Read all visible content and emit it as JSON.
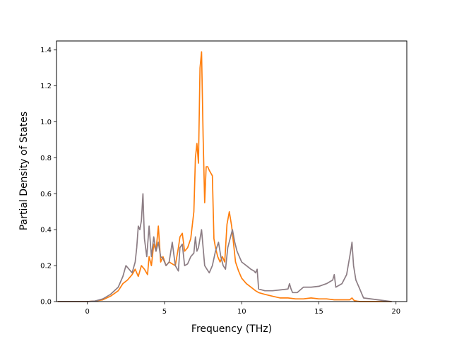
{
  "chart_data": {
    "type": "line",
    "title": "",
    "xlabel": "Frequency (THz)",
    "ylabel": "Partial Density of States",
    "xlim": [
      -2.0,
      20.7
    ],
    "ylim": [
      0.0,
      1.45
    ],
    "xticks": [
      0,
      5,
      10,
      15,
      20
    ],
    "yticks": [
      0.0,
      0.2,
      0.4,
      0.6,
      0.8,
      1.0,
      1.2,
      1.4
    ],
    "xtick_labels": [
      "0",
      "5",
      "10",
      "15",
      "20"
    ],
    "ytick_labels": [
      "0.0",
      "0.2",
      "0.4",
      "0.6",
      "0.8",
      "1.0",
      "1.2",
      "1.4"
    ],
    "grid": false,
    "legend": "none",
    "series": [
      {
        "color": "#ff7f0e",
        "x": [
          -1.9,
          0.0,
          0.5,
          1.0,
          1.5,
          2.0,
          2.3,
          2.6,
          2.9,
          3.1,
          3.3,
          3.5,
          3.7,
          3.9,
          4.0,
          4.15,
          4.3,
          4.45,
          4.6,
          4.75,
          4.9,
          5.1,
          5.3,
          5.5,
          5.7,
          5.9,
          6.0,
          6.15,
          6.3,
          6.5,
          6.7,
          6.9,
          7.0,
          7.1,
          7.2,
          7.3,
          7.4,
          7.5,
          7.6,
          7.7,
          7.8,
          7.9,
          8.1,
          8.2,
          8.3,
          8.45,
          8.6,
          8.75,
          8.9,
          9.05,
          9.2,
          9.35,
          9.5,
          9.6,
          9.8,
          10.0,
          10.3,
          10.6,
          10.9,
          11.1,
          11.5,
          12.0,
          12.5,
          13.0,
          13.5,
          14.0,
          14.5,
          15.0,
          15.5,
          16.0,
          16.5,
          17.0,
          17.15,
          17.3,
          17.5,
          17.7,
          17.9,
          19.7
        ],
        "values": [
          0.0,
          0.0,
          0.003,
          0.01,
          0.03,
          0.06,
          0.1,
          0.12,
          0.15,
          0.18,
          0.14,
          0.2,
          0.18,
          0.15,
          0.25,
          0.2,
          0.32,
          0.28,
          0.42,
          0.22,
          0.25,
          0.2,
          0.22,
          0.21,
          0.2,
          0.3,
          0.36,
          0.38,
          0.28,
          0.3,
          0.35,
          0.5,
          0.8,
          0.88,
          0.77,
          1.3,
          1.39,
          0.92,
          0.55,
          0.75,
          0.75,
          0.73,
          0.7,
          0.35,
          0.3,
          0.25,
          0.22,
          0.25,
          0.22,
          0.43,
          0.5,
          0.42,
          0.3,
          0.22,
          0.17,
          0.13,
          0.1,
          0.08,
          0.06,
          0.05,
          0.04,
          0.03,
          0.02,
          0.02,
          0.015,
          0.015,
          0.02,
          0.015,
          0.015,
          0.01,
          0.01,
          0.01,
          0.02,
          0.005,
          0.002,
          0.0,
          0.0,
          0.0
        ]
      },
      {
        "color": "#8c7d84",
        "x": [
          -1.9,
          0.0,
          0.5,
          1.0,
          1.5,
          2.0,
          2.3,
          2.5,
          2.7,
          2.9,
          3.1,
          3.2,
          3.3,
          3.4,
          3.5,
          3.6,
          3.7,
          3.85,
          4.0,
          4.15,
          4.3,
          4.45,
          4.6,
          4.75,
          4.9,
          5.1,
          5.3,
          5.5,
          5.7,
          5.9,
          6.0,
          6.15,
          6.3,
          6.5,
          6.7,
          6.9,
          7.0,
          7.1,
          7.2,
          7.3,
          7.4,
          7.5,
          7.6,
          7.75,
          7.9,
          8.1,
          8.3,
          8.5,
          8.65,
          8.8,
          8.95,
          9.1,
          9.25,
          9.4,
          9.55,
          9.7,
          9.85,
          10.0,
          10.3,
          10.6,
          10.8,
          10.9,
          11.0,
          11.1,
          11.5,
          12.0,
          12.5,
          13.0,
          13.1,
          13.2,
          13.3,
          13.6,
          14.0,
          14.5,
          15.0,
          15.5,
          15.9,
          16.0,
          16.1,
          16.5,
          16.8,
          17.0,
          17.1,
          17.15,
          17.25,
          17.4,
          17.6,
          17.8,
          17.9,
          19.7
        ],
        "values": [
          0.0,
          0.0,
          0.003,
          0.015,
          0.04,
          0.08,
          0.14,
          0.2,
          0.18,
          0.16,
          0.22,
          0.3,
          0.42,
          0.4,
          0.45,
          0.6,
          0.35,
          0.25,
          0.42,
          0.25,
          0.36,
          0.28,
          0.33,
          0.25,
          0.24,
          0.2,
          0.22,
          0.33,
          0.2,
          0.17,
          0.3,
          0.32,
          0.2,
          0.21,
          0.25,
          0.27,
          0.36,
          0.28,
          0.3,
          0.35,
          0.4,
          0.3,
          0.2,
          0.18,
          0.16,
          0.2,
          0.28,
          0.33,
          0.25,
          0.2,
          0.18,
          0.3,
          0.35,
          0.4,
          0.33,
          0.28,
          0.25,
          0.22,
          0.2,
          0.18,
          0.17,
          0.16,
          0.18,
          0.07,
          0.06,
          0.06,
          0.065,
          0.07,
          0.1,
          0.07,
          0.05,
          0.05,
          0.08,
          0.08,
          0.085,
          0.1,
          0.12,
          0.15,
          0.08,
          0.1,
          0.15,
          0.25,
          0.3,
          0.33,
          0.2,
          0.12,
          0.08,
          0.04,
          0.02,
          0.0
        ]
      }
    ]
  }
}
